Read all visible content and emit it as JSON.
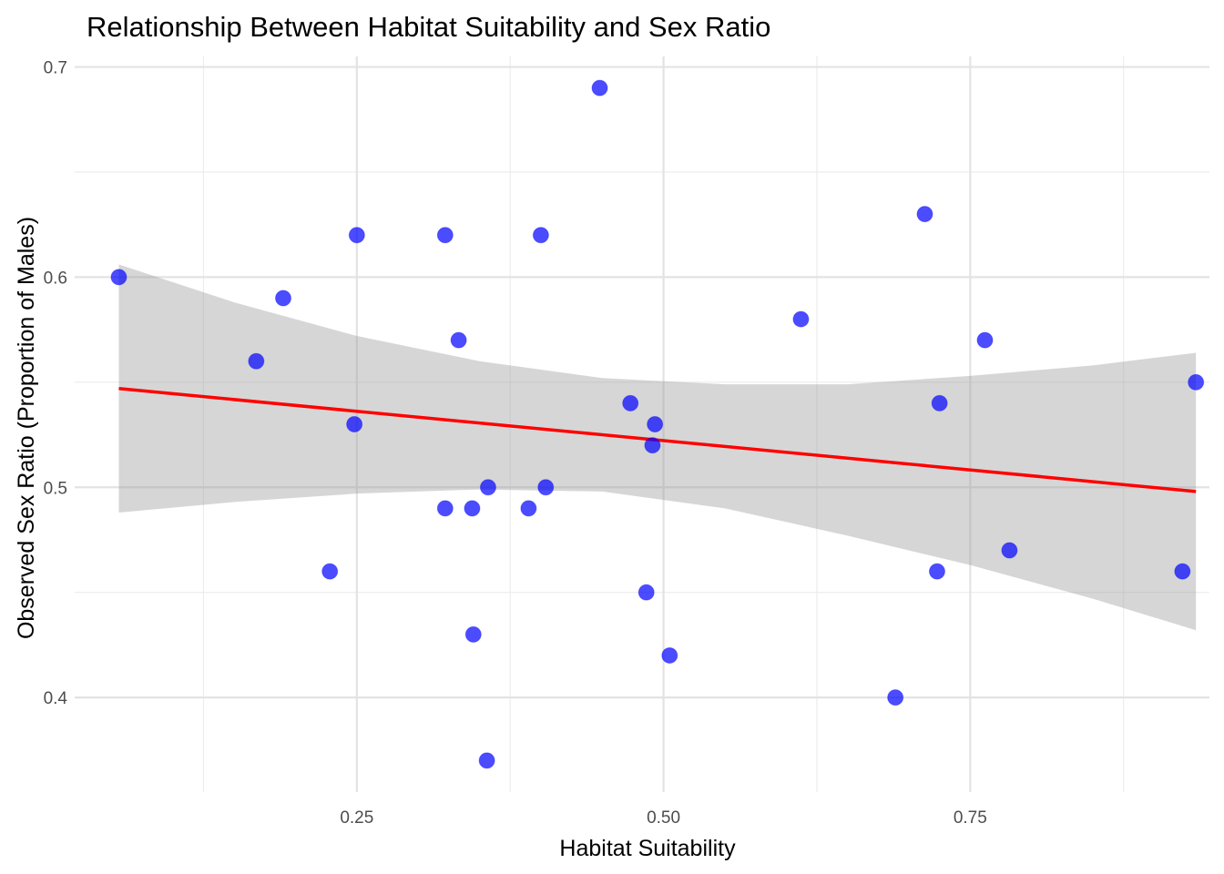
{
  "chart_data": {
    "type": "scatter",
    "title": "Relationship Between Habitat Suitability and Sex Ratio",
    "xlabel": "Habitat Suitability",
    "ylabel": "Observed Sex Ratio (Proportion of Males)",
    "xlim": [
      0.02,
      0.945
    ],
    "ylim": [
      0.355,
      0.705
    ],
    "x_ticks": [
      0.25,
      0.5,
      0.75
    ],
    "x_tick_labels": [
      "0.25",
      "0.50",
      "0.75"
    ],
    "x_minor_ticks": [
      0.125,
      0.375,
      0.625,
      0.875
    ],
    "y_ticks": [
      0.4,
      0.5,
      0.6,
      0.7
    ],
    "y_tick_labels": [
      "0.4",
      "0.5",
      "0.6",
      "0.7"
    ],
    "y_minor_ticks": [
      0.45,
      0.55,
      0.65
    ],
    "grid": true,
    "point_color": "#0000ff",
    "point_opacity": 0.7,
    "points": [
      {
        "x": 0.056,
        "y": 0.6
      },
      {
        "x": 0.168,
        "y": 0.56
      },
      {
        "x": 0.19,
        "y": 0.59
      },
      {
        "x": 0.228,
        "y": 0.46
      },
      {
        "x": 0.248,
        "y": 0.53
      },
      {
        "x": 0.25,
        "y": 0.62
      },
      {
        "x": 0.322,
        "y": 0.62
      },
      {
        "x": 0.322,
        "y": 0.49
      },
      {
        "x": 0.333,
        "y": 0.57
      },
      {
        "x": 0.344,
        "y": 0.49
      },
      {
        "x": 0.345,
        "y": 0.43
      },
      {
        "x": 0.357,
        "y": 0.5
      },
      {
        "x": 0.356,
        "y": 0.37
      },
      {
        "x": 0.39,
        "y": 0.49
      },
      {
        "x": 0.4,
        "y": 0.62
      },
      {
        "x": 0.404,
        "y": 0.5
      },
      {
        "x": 0.448,
        "y": 0.69
      },
      {
        "x": 0.473,
        "y": 0.54
      },
      {
        "x": 0.486,
        "y": 0.45
      },
      {
        "x": 0.491,
        "y": 0.52
      },
      {
        "x": 0.493,
        "y": 0.53
      },
      {
        "x": 0.505,
        "y": 0.42
      },
      {
        "x": 0.612,
        "y": 0.58
      },
      {
        "x": 0.689,
        "y": 0.4
      },
      {
        "x": 0.713,
        "y": 0.63
      },
      {
        "x": 0.723,
        "y": 0.46
      },
      {
        "x": 0.725,
        "y": 0.54
      },
      {
        "x": 0.762,
        "y": 0.57
      },
      {
        "x": 0.782,
        "y": 0.47
      },
      {
        "x": 0.923,
        "y": 0.46
      },
      {
        "x": 0.934,
        "y": 0.55
      }
    ],
    "regression": {
      "color": "#ff0000",
      "x": [
        0.056,
        0.934
      ],
      "y": [
        0.547,
        0.498
      ]
    },
    "confidence_band": {
      "color": "#999999",
      "opacity": 0.4,
      "x": [
        0.056,
        0.15,
        0.25,
        0.35,
        0.45,
        0.55,
        0.65,
        0.75,
        0.85,
        0.934
      ],
      "upper": [
        0.606,
        0.588,
        0.572,
        0.56,
        0.552,
        0.549,
        0.549,
        0.553,
        0.558,
        0.564
      ],
      "lower": [
        0.488,
        0.493,
        0.497,
        0.499,
        0.498,
        0.49,
        0.477,
        0.463,
        0.447,
        0.432
      ]
    }
  }
}
